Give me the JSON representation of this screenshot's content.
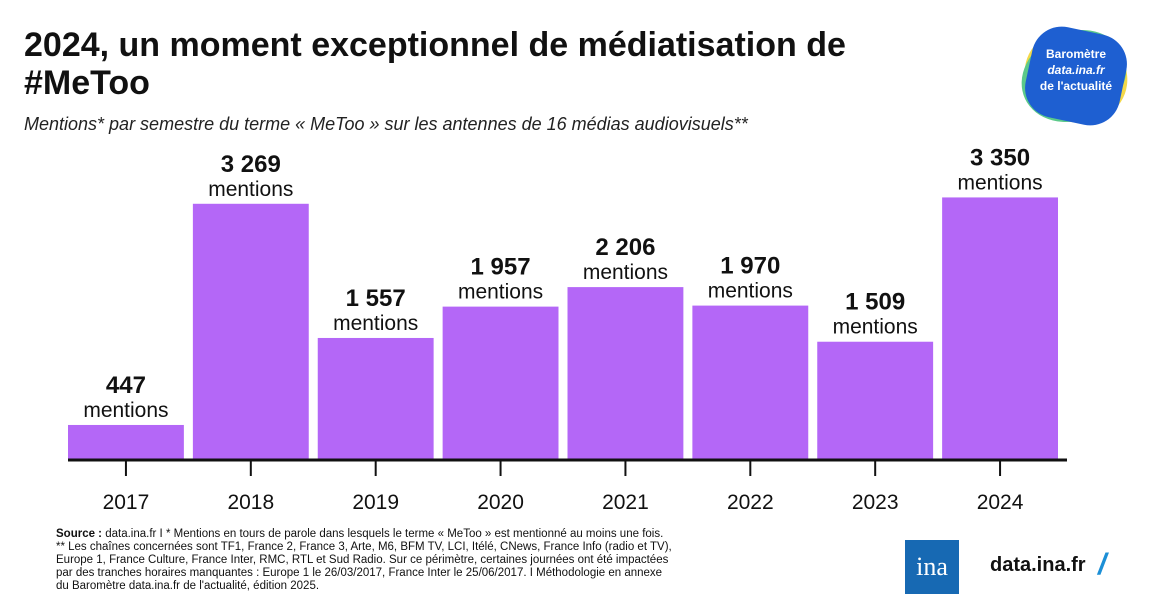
{
  "header": {
    "title": "2024, un moment exceptionnel de médiatisation de #MeToo",
    "subtitle": "Mentions* par semestre du terme « MeToo » sur les antennes de 16 médias audiovisuels**"
  },
  "badge": {
    "line1": "Baromètre",
    "line2": "data.ina.fr",
    "line3": "de l'actualité"
  },
  "chart_data": {
    "type": "bar",
    "categories": [
      "2017",
      "2018",
      "2019",
      "2020",
      "2021",
      "2022",
      "2023",
      "2024"
    ],
    "values": [
      447,
      3269,
      1557,
      1957,
      2206,
      1970,
      1509,
      3350
    ],
    "value_labels": [
      "447",
      "3 269",
      "1 557",
      "1 957",
      "2 206",
      "1 970",
      "1 509",
      "3 350"
    ],
    "unit_label": "mentions",
    "ylim": [
      0,
      3700
    ],
    "bar_color": "#b467f7",
    "grid": false
  },
  "footer": {
    "source_label": "Source :",
    "line1": " data.ina.fr I * Mentions en tours de parole dans lesquels le terme « MeToo » est mentionné au moins une fois.",
    "line2": "** Les chaînes concernées sont TF1, France 2, France 3, Arte, M6, BFM TV, LCI, Itélé, CNews, France Info (radio et TV),",
    "line3": "Europe 1, France Culture, France Inter, RMC, RTL et Sud Radio. Sur ce périmètre, certaines journées ont été impactées",
    "line4": "par des tranches horaires manquantes : Europe 1 le 26/03/2017, France Inter le 25/06/2017. I Méthodologie en annexe",
    "line5": " du Baromètre data.ina.fr de l'actualité, édition 2025."
  },
  "branding": {
    "logo_text": "ina",
    "site": "data.ina.fr",
    "slash": "/"
  }
}
